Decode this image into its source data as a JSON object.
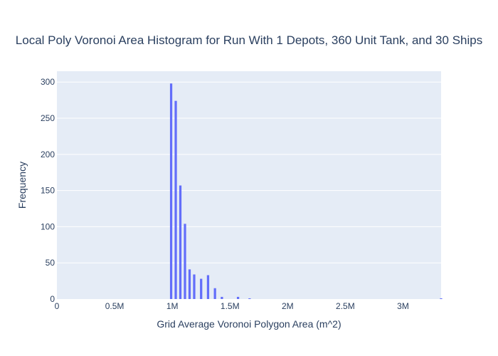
{
  "chart_data": {
    "type": "bar",
    "title": "Local Poly Voronoi Area Histogram for Run With 1 Depots, 360 Unit Tank, and 30 Ships",
    "xlabel": "Grid Average Voronoi Polygon Area (m^2)",
    "ylabel": "Frequency",
    "xlim": [
      0,
      3330000
    ],
    "ylim": [
      0,
      315
    ],
    "x_ticks": [
      0,
      500000,
      1000000,
      1500000,
      2000000,
      2500000,
      3000000
    ],
    "x_tick_labels": [
      "0",
      "0.5M",
      "1M",
      "1.5M",
      "2M",
      "2.5M",
      "3M"
    ],
    "y_ticks": [
      0,
      50,
      100,
      150,
      200,
      250,
      300
    ],
    "y_tick_labels": [
      "0",
      "50",
      "100",
      "150",
      "200",
      "250",
      "300"
    ],
    "grid": true,
    "legend": "none",
    "bar_color": "#636efa",
    "plot_bgcolor": "#e5ecf6",
    "bin_width": 20000,
    "bins": [
      {
        "x": 990000,
        "count": 298
      },
      {
        "x": 1030000,
        "count": 274
      },
      {
        "x": 1070000,
        "count": 157
      },
      {
        "x": 1110000,
        "count": 104
      },
      {
        "x": 1150000,
        "count": 41
      },
      {
        "x": 1190000,
        "count": 34
      },
      {
        "x": 1250000,
        "count": 28
      },
      {
        "x": 1310000,
        "count": 33
      },
      {
        "x": 1370000,
        "count": 15
      },
      {
        "x": 1430000,
        "count": 3
      },
      {
        "x": 1570000,
        "count": 3
      },
      {
        "x": 1670000,
        "count": 1
      },
      {
        "x": 3330000,
        "count": 1
      }
    ]
  }
}
